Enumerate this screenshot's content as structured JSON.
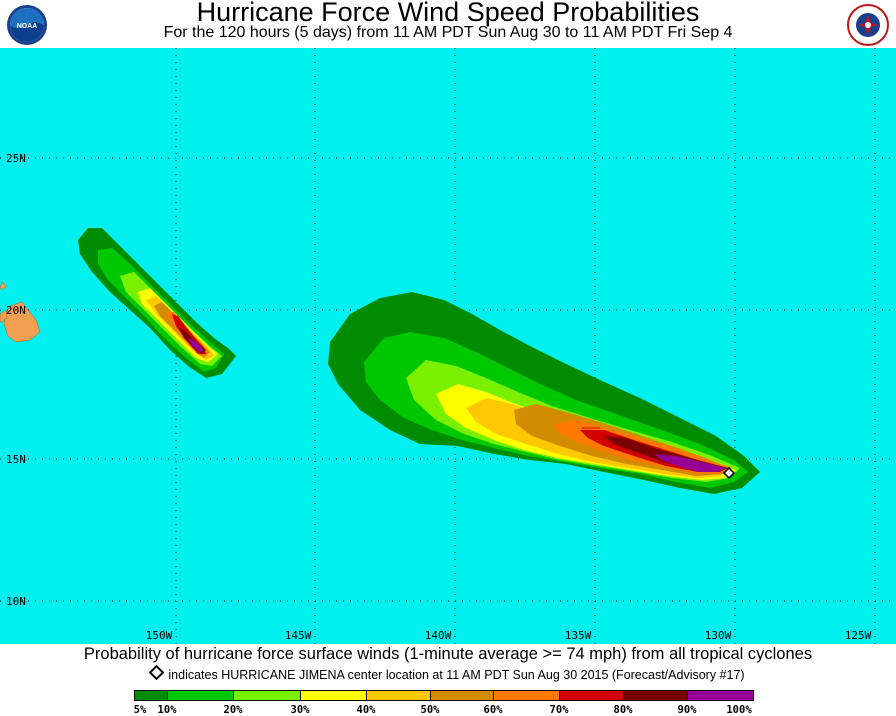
{
  "header": {
    "title": "Hurricane Force Wind Speed Probabilities",
    "subtitle": "For the 120 hours (5 days) from 11 AM PDT Sun Aug 30 to 11 AM PDT Fri Sep 4",
    "left_logo": "NOAA",
    "right_logo": "National Weather Service"
  },
  "map": {
    "ocean_color": "#00f0f0",
    "land_color": "#f0a050",
    "lat_labels": [
      "25N",
      "20N",
      "15N",
      "10N"
    ],
    "lon_labels": [
      "150W",
      "145W",
      "140W",
      "135W",
      "130W",
      "125W"
    ],
    "storm_marker": "diamond-icon"
  },
  "footer": {
    "description": "Probability of hurricane force surface winds (1-minute average >= 74 mph) from all tropical cyclones",
    "marker_text": "indicates HURRICANE JIMENA center location at 11 AM PDT Sun Aug 30 2015 (Forecast/Advisory #17)"
  },
  "legend": {
    "colors": [
      "#008c00",
      "#00c800",
      "#78f000",
      "#ffff00",
      "#ffc800",
      "#d28c00",
      "#ff7800",
      "#d20000",
      "#780000",
      "#960096"
    ],
    "labels": [
      "5%",
      "10%",
      "20%",
      "30%",
      "40%",
      "50%",
      "60%",
      "70%",
      "80%",
      "90%",
      "100%"
    ]
  }
}
